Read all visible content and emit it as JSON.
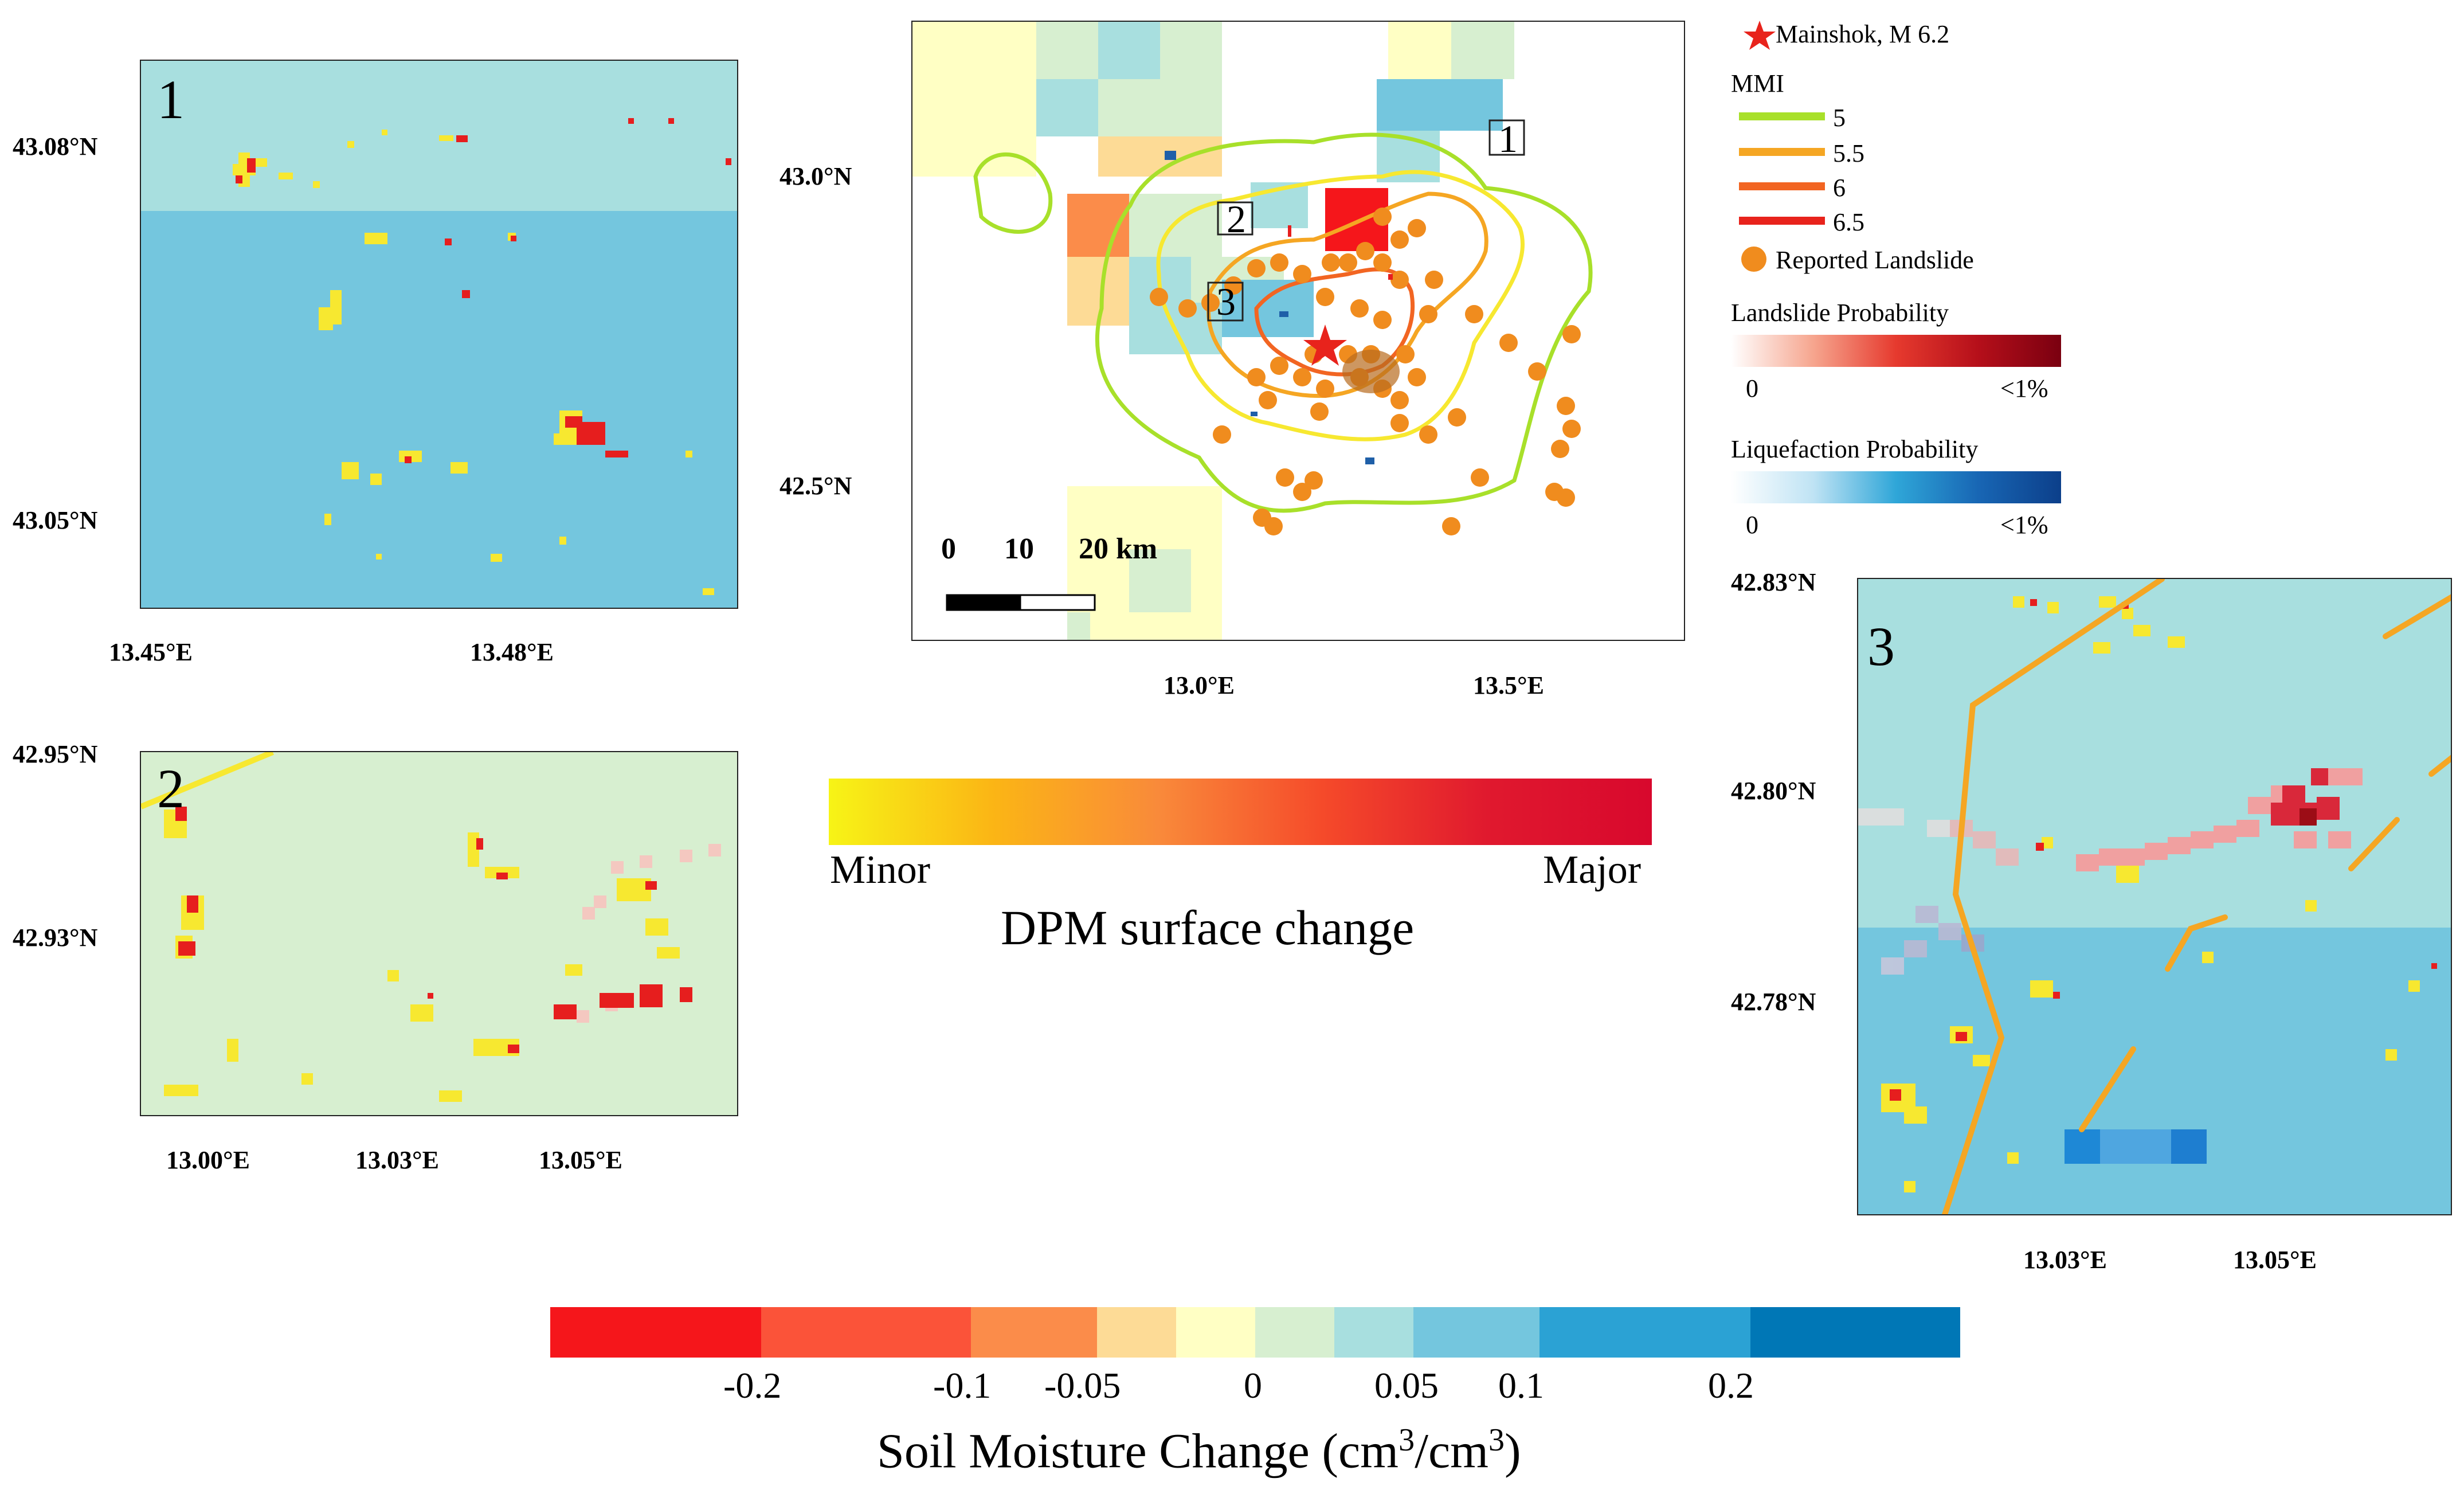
{
  "panel1": {
    "number": "1",
    "y_ticks": [
      "43.08°N",
      "43.05°N"
    ],
    "x_ticks": [
      "13.45°E",
      "13.48°E"
    ]
  },
  "panel2": {
    "number": "2",
    "y_ticks": [
      "42.95°N",
      "42.93°N"
    ],
    "x_ticks": [
      "13.00°E",
      "13.03°E",
      "13.05°E"
    ]
  },
  "panel3": {
    "number": "3",
    "y_ticks": [
      "42.83°N",
      "42.80°N",
      "42.78°N"
    ],
    "x_ticks": [
      "13.03°E",
      "13.05°E"
    ]
  },
  "main_map": {
    "y_ticks": [
      "43.0°N",
      "42.5°N"
    ],
    "x_ticks": [
      "13.0°E",
      "13.5°E"
    ],
    "box_labels": [
      "1",
      "2",
      "3"
    ],
    "scalebar": {
      "labels": [
        "0",
        "10",
        "20 km"
      ]
    }
  },
  "legend": {
    "mainshock": "Mainshok, M 6.2",
    "mmi_title": "MMI",
    "mmi_levels": [
      {
        "label": "5",
        "color": "#a8e02a"
      },
      {
        "label": "5.5",
        "color": "#f5a623"
      },
      {
        "label": "6",
        "color": "#f26522"
      },
      {
        "label": "6.5",
        "color": "#e8231c"
      }
    ],
    "reported_landslide": "Reported Landslide",
    "landslide_prob_title": "Landslide Probability",
    "landslide_prob_min": "0",
    "landslide_prob_max": "<1%",
    "liquefaction_prob_title": "Liquefaction Probability",
    "liquefaction_prob_min": "0",
    "liquefaction_prob_max": "<1%"
  },
  "dpm_bar": {
    "min_label": "Minor",
    "max_label": "Major",
    "title": "DPM surface change"
  },
  "soil_bar": {
    "tick_labels": [
      "-0.2",
      "-0.1",
      "-0.05",
      "0",
      "0.05",
      "0.1",
      "0.2"
    ],
    "title_prefix": "Soil Moisture Change (cm",
    "sup": "3",
    "title_mid": "/cm",
    "title_suffix": ")",
    "colors": [
      "#f5161b",
      "#fb5339",
      "#fb8c4a",
      "#fddb96",
      "#ffffc4",
      "#d7efd0",
      "#a8dfdf",
      "#74c6de",
      "#2ba2d4",
      "#0077b6"
    ]
  }
}
